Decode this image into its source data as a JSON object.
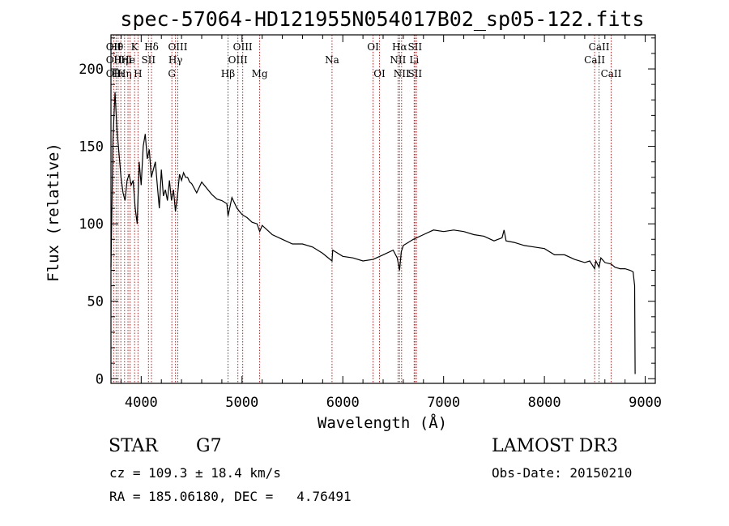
{
  "chart_data": {
    "type": "line",
    "title": "spec-57064-HD121955N054017B02_sp05-122.fits",
    "xlabel": "Wavelength (Å)",
    "ylabel": "Flux (relative)",
    "xlim": [
      3700,
      9100
    ],
    "ylim": [
      -3,
      222
    ],
    "xticks": [
      4000,
      5000,
      6000,
      7000,
      8000,
      9000
    ],
    "yticks": [
      0,
      50,
      100,
      150,
      200
    ],
    "line_color": "#000000",
    "marker_color": "#b22222",
    "series": [
      {
        "name": "spectrum",
        "x": [
          3700,
          3720,
          3740,
          3760,
          3780,
          3800,
          3820,
          3840,
          3860,
          3880,
          3900,
          3920,
          3940,
          3960,
          3980,
          4000,
          4020,
          4040,
          4060,
          4080,
          4100,
          4120,
          4140,
          4160,
          4180,
          4200,
          4220,
          4240,
          4260,
          4280,
          4300,
          4320,
          4340,
          4360,
          4380,
          4400,
          4420,
          4440,
          4460,
          4480,
          4500,
          4550,
          4600,
          4650,
          4700,
          4750,
          4800,
          4850,
          4861,
          4900,
          4950,
          5000,
          5050,
          5100,
          5150,
          5175,
          5200,
          5300,
          5400,
          5500,
          5600,
          5700,
          5800,
          5893,
          5900,
          6000,
          6100,
          6200,
          6300,
          6400,
          6500,
          6540,
          6563,
          6580,
          6600,
          6700,
          6800,
          6900,
          7000,
          7100,
          7200,
          7300,
          7400,
          7500,
          7580,
          7600,
          7620,
          7700,
          7800,
          7900,
          8000,
          8100,
          8200,
          8300,
          8400,
          8450,
          8498,
          8510,
          8542,
          8560,
          8600,
          8662,
          8700,
          8750,
          8800,
          8850,
          8880,
          8895,
          8900
        ],
        "y": [
          72,
          155,
          185,
          160,
          145,
          130,
          120,
          115,
          128,
          132,
          125,
          128,
          110,
          100,
          140,
          125,
          150,
          158,
          142,
          148,
          130,
          135,
          140,
          125,
          110,
          135,
          118,
          122,
          115,
          128,
          115,
          122,
          108,
          118,
          132,
          128,
          133,
          130,
          130,
          127,
          126,
          120,
          127,
          123,
          119,
          116,
          115,
          113,
          105,
          117,
          110,
          106,
          104,
          101,
          100,
          95,
          99,
          93,
          90,
          87,
          87,
          85,
          81,
          76,
          83,
          79,
          78,
          76,
          77,
          80,
          83,
          78,
          70,
          82,
          86,
          90,
          93,
          96,
          95,
          96,
          95,
          93,
          92,
          89,
          91,
          96,
          89,
          88,
          86,
          85,
          84,
          80,
          80,
          77,
          75,
          76,
          71,
          76,
          72,
          78,
          75,
          74,
          72,
          71,
          71,
          70,
          69,
          60,
          3
        ]
      }
    ],
    "lines": [
      {
        "wl": 3727,
        "top": "OII",
        "row2": "OII",
        "row3": "OII"
      },
      {
        "wl": 3751,
        "top": "Hθ"
      },
      {
        "wl": 3771,
        "row3": "Hι"
      },
      {
        "wl": 3798,
        "row2": "Hη"
      },
      {
        "wl": 3835,
        "row3": "Hη"
      },
      {
        "wl": 3869,
        "row2": "He"
      },
      {
        "wl": 3889,
        "row2": "I"
      },
      {
        "wl": 3934,
        "top": "K"
      },
      {
        "wl": 3968,
        "row3": "H"
      },
      {
        "wl": 4072,
        "row2": "SII"
      },
      {
        "wl": 4102,
        "top": "Hδ"
      },
      {
        "wl": 4304,
        "row3": "G"
      },
      {
        "wl": 4340,
        "row2": "Hγ"
      },
      {
        "wl": 4363,
        "top": "OIII"
      },
      {
        "wl": 4861,
        "row3": "Hβ"
      },
      {
        "wl": 4959,
        "row2": "OIII"
      },
      {
        "wl": 5007,
        "top": "OIII"
      },
      {
        "wl": 5175,
        "row3": "Mg"
      },
      {
        "wl": 5893,
        "row2": "Na"
      },
      {
        "wl": 6300,
        "top": "OI"
      },
      {
        "wl": 6364,
        "row3": "OI"
      },
      {
        "wl": 6548,
        "row2": "NII"
      },
      {
        "wl": 6563,
        "top": "Hα"
      },
      {
        "wl": 6583,
        "row3": "NII"
      },
      {
        "wl": 6708,
        "row2": "Li"
      },
      {
        "wl": 6716,
        "top": "SII",
        "row3": "SII"
      },
      {
        "wl": 6731
      },
      {
        "wl": 8498,
        "row2": "CaII"
      },
      {
        "wl": 8542,
        "top": "CaII"
      },
      {
        "wl": 8662,
        "row3": "CaII"
      }
    ]
  },
  "info": {
    "object_class": "STAR",
    "subclass": "G7",
    "survey": "LAMOST DR3",
    "redshift": "cz = 109.3 ± 18.4 km/s",
    "obs_date": "Obs-Date: 20150210",
    "coords": "RA = 185.06180, DEC =   4.76491"
  }
}
